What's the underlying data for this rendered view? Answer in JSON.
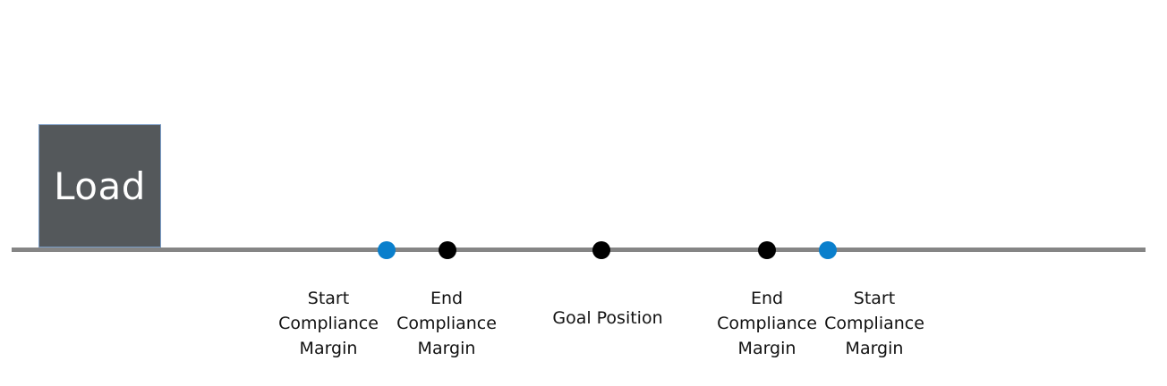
{
  "load": {
    "label": "Load",
    "fill_color": "#54585b"
  },
  "track": {
    "color": "#858585"
  },
  "markers": [
    {
      "name": "start-compliance-margin-left",
      "color": "#0a7fcc",
      "lines": [
        "Start",
        "Compliance",
        "Margin"
      ]
    },
    {
      "name": "end-compliance-margin-left",
      "color": "#000000",
      "lines": [
        "End",
        "Compliance",
        "Margin"
      ]
    },
    {
      "name": "goal-position",
      "color": "#000000",
      "lines": [
        "Goal Position"
      ]
    },
    {
      "name": "end-compliance-margin-right",
      "color": "#000000",
      "lines": [
        "End",
        "Compliance",
        "Margin"
      ]
    },
    {
      "name": "start-compliance-margin-right",
      "color": "#0a7fcc",
      "lines": [
        "Start",
        "Compliance",
        "Margin"
      ]
    }
  ]
}
